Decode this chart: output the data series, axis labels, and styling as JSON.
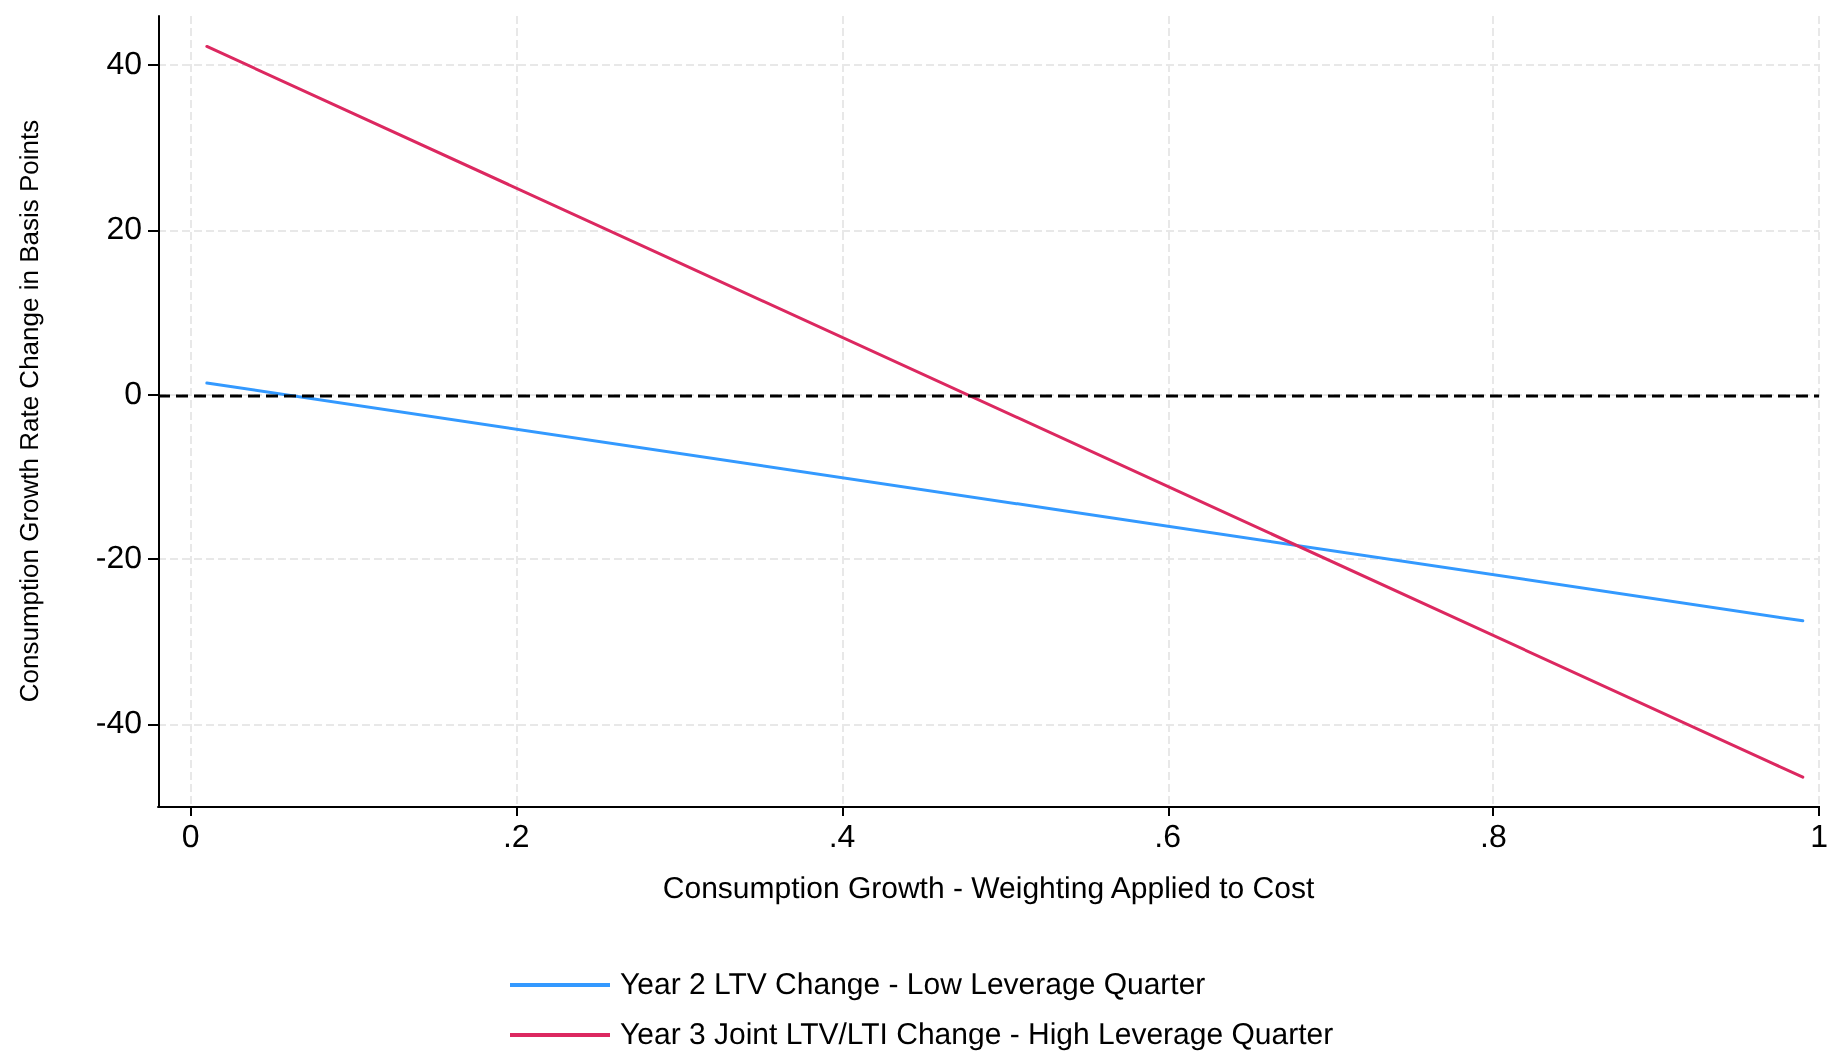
{
  "chart_data": {
    "type": "line",
    "xlabel": "Consumption Growth - Weighting Applied to Cost",
    "ylabel": "Consumption Growth Rate Change in Basis Points",
    "x": [
      0.01,
      0.99
    ],
    "series": [
      {
        "name": "Year 2 LTV Change - Low Leverage Quarter",
        "color": "#3399ff",
        "values": [
          1.4,
          -27.5
        ]
      },
      {
        "name": "Year 3 Joint LTV/LTI Change - High Leverage Quarter",
        "color": "#dc2860",
        "values": [
          42.3,
          -46.5
        ]
      }
    ],
    "xlim": [
      -0.02,
      1
    ],
    "xticks": [
      0,
      {
        "value": 0.2,
        "label": ".2"
      },
      {
        "value": 0.4,
        "label": ".4"
      },
      {
        "value": 0.6,
        "label": ".6"
      },
      {
        "value": 0.8,
        "label": ".8"
      },
      1
    ],
    "ylim": [
      -50,
      46
    ],
    "yticks": [
      -40,
      -20,
      0,
      20,
      40
    ],
    "ref_lines": [
      {
        "axis": "y",
        "value": 0,
        "color": "#000000",
        "line_style": "dashed"
      }
    ],
    "grid": true,
    "legend": "bottom",
    "marker": "none",
    "line_style": "solid"
  }
}
